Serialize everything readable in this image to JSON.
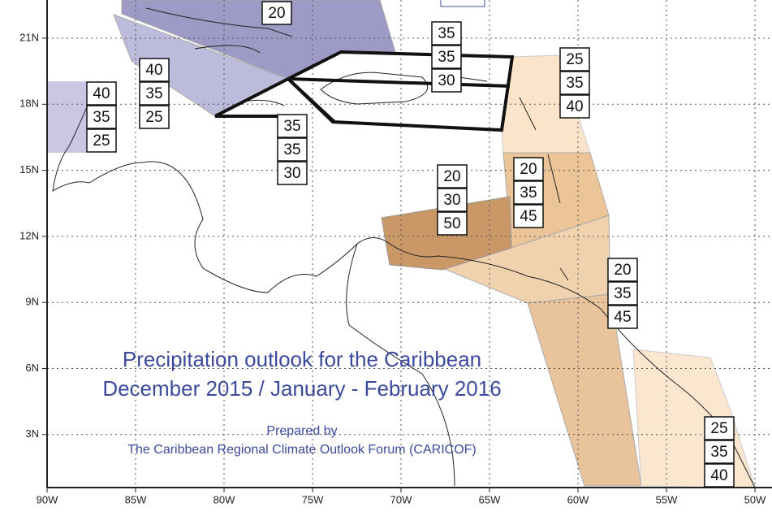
{
  "map": {
    "lat_labels": [
      "21N",
      "18N",
      "15N",
      "12N",
      "9N",
      "6N",
      "3N"
    ],
    "lon_labels": [
      "90W",
      "85W",
      "80W",
      "75W",
      "70W",
      "65W",
      "60W",
      "55W",
      "50W"
    ],
    "title": [
      "Precipitation outlook for the Caribbean",
      "December 2015 / January - February 2016"
    ],
    "credit": [
      "Prepared by",
      "The Caribbean Regional Climate Outlook Forum (CARICOF)"
    ],
    "regions": [
      {
        "probabilities": [
          20
        ]
      },
      {
        "probabilities": [
          35,
          35,
          30
        ]
      },
      {
        "probabilities": [
          25,
          35,
          40
        ]
      },
      {
        "probabilities": [
          40,
          35,
          25
        ]
      },
      {
        "probabilities": [
          40,
          35,
          25
        ]
      },
      {
        "probabilities": [
          35,
          35,
          30
        ]
      },
      {
        "probabilities": [
          20,
          30,
          50
        ]
      },
      {
        "probabilities": [
          20,
          35,
          45
        ]
      },
      {
        "probabilities": [
          20,
          35,
          45
        ]
      },
      {
        "probabilities": [
          25,
          35,
          40
        ]
      }
    ]
  }
}
